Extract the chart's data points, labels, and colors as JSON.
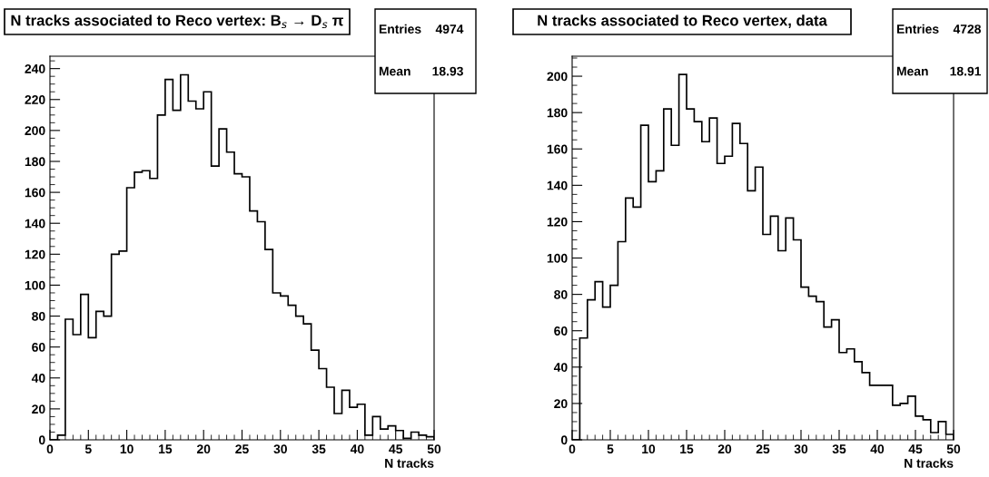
{
  "chart_data": [
    {
      "type": "histogram",
      "title": "N tracks associated to Reco vertex: B$_{s}$ → D$_{s}$ π",
      "xlabel": "N tracks",
      "color": "#000000",
      "grid": false,
      "bins": [
        0,
        1,
        2,
        3,
        4,
        5,
        6,
        7,
        8,
        9,
        10,
        11,
        12,
        13,
        14,
        15,
        16,
        17,
        18,
        19,
        20,
        21,
        22,
        23,
        24,
        25,
        26,
        27,
        28,
        29,
        30,
        31,
        32,
        33,
        34,
        35,
        36,
        37,
        38,
        39,
        40,
        41,
        42,
        43,
        44,
        45,
        46,
        47,
        48,
        49,
        50
      ],
      "values": [
        0,
        3,
        78,
        68,
        94,
        66,
        83,
        80,
        120,
        122,
        163,
        173,
        174,
        169,
        210,
        233,
        213,
        236,
        219,
        214,
        225,
        177,
        201,
        186,
        172,
        170,
        148,
        141,
        123,
        95,
        93,
        87,
        80,
        75,
        58,
        46,
        34,
        17,
        32,
        21,
        23,
        3,
        15,
        7,
        9,
        6,
        1,
        5,
        3,
        2
      ],
      "xlim": [
        0,
        50
      ],
      "xticks": [
        0,
        5,
        10,
        15,
        20,
        25,
        30,
        35,
        40,
        45,
        50
      ],
      "ylim": [
        0,
        248
      ],
      "yticks": [
        0,
        20,
        40,
        60,
        80,
        100,
        120,
        140,
        160,
        180,
        200,
        220,
        240
      ],
      "annotations": [
        "Entries    4974",
        "Mean      18.93"
      ]
    },
    {
      "type": "histogram",
      "title": "N tracks associated to Reco vertex, data",
      "xlabel": "N tracks",
      "color": "#000000",
      "grid": false,
      "bins": [
        0,
        1,
        2,
        3,
        4,
        5,
        6,
        7,
        8,
        9,
        10,
        11,
        12,
        13,
        14,
        15,
        16,
        17,
        18,
        19,
        20,
        21,
        22,
        23,
        24,
        25,
        26,
        27,
        28,
        29,
        30,
        31,
        32,
        33,
        34,
        35,
        36,
        37,
        38,
        39,
        40,
        41,
        42,
        43,
        44,
        45,
        46,
        47,
        48,
        49,
        50
      ],
      "values": [
        0,
        56,
        77,
        87,
        73,
        85,
        109,
        133,
        128,
        173,
        142,
        148,
        182,
        162,
        201,
        182,
        175,
        164,
        177,
        152,
        156,
        174,
        163,
        137,
        150,
        113,
        123,
        104,
        122,
        110,
        84,
        79,
        76,
        62,
        66,
        48,
        50,
        43,
        37,
        30,
        30,
        30,
        19,
        20,
        24,
        13,
        11,
        4,
        10,
        3
      ],
      "xlim": [
        0,
        50
      ],
      "xticks": [
        0,
        5,
        10,
        15,
        20,
        25,
        30,
        35,
        40,
        45,
        50
      ],
      "ylim": [
        0,
        211
      ],
      "yticks": [
        0,
        20,
        40,
        60,
        80,
        100,
        120,
        140,
        160,
        180,
        200
      ],
      "annotations": [
        "Entries    4728",
        "Mean      18.91"
      ]
    }
  ]
}
